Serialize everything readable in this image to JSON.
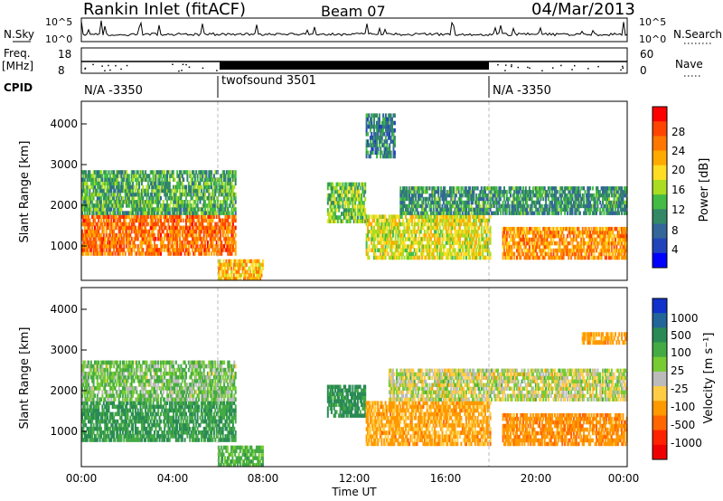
{
  "header": {
    "station": "Rankin Inlet (fitACF)",
    "beam": "Beam 07",
    "date": "04/Mar/2013"
  },
  "noise_panel": {
    "left_label": "N.Sky",
    "right_label": "N.Search",
    "left_ticks": [
      "10^5",
      "10^0"
    ],
    "right_ticks": [
      "10^5",
      "10^0"
    ]
  },
  "freq_panel": {
    "left_label_1": "Freq.",
    "left_label_2": "[MHz]",
    "right_label": "Nave",
    "left_ticks": [
      "18",
      "8"
    ],
    "right_ticks": [
      "60",
      "0"
    ]
  },
  "cpid_panel": {
    "label": "CPID",
    "segments": [
      {
        "text": "N/A -3350",
        "start_hour": 0,
        "end_hour": 6
      },
      {
        "text": "twofsound 3501",
        "start_hour": 6,
        "end_hour": 18
      },
      {
        "text": "N/A -3350",
        "start_hour": 18,
        "end_hour": 24
      }
    ]
  },
  "axes": {
    "x_label": "Time UT",
    "x_ticks": [
      "00:00",
      "04:00",
      "08:00",
      "12:00",
      "16:00",
      "20:00",
      "00:00"
    ],
    "y_label": "Slant Range [km]",
    "y_ticks": [
      "1000",
      "2000",
      "3000",
      "4000"
    ]
  },
  "colorbars": {
    "power": {
      "label": "Power [dB]",
      "ticks": [
        "28",
        "24",
        "20",
        "16",
        "12",
        "8",
        "4"
      ],
      "colors": [
        "#ff0000",
        "#ff4400",
        "#ff7700",
        "#ffaa00",
        "#ffdd22",
        "#aadd22",
        "#44bb44",
        "#338866",
        "#336699",
        "#2244bb",
        "#0000ff"
      ]
    },
    "velocity": {
      "label": "Velocity [m s⁻¹]",
      "ticks": [
        "1000",
        "500",
        "100",
        "25",
        "-25",
        "-100",
        "-500",
        "-1000"
      ],
      "colors": [
        "#1133cc",
        "#226699",
        "#2a8a55",
        "#44aa44",
        "#77cc33",
        "#bbbbbb",
        "#ffcc44",
        "#ff9900",
        "#ff6600",
        "#ff2200",
        "#ee0000"
      ]
    }
  },
  "chart_data": [
    {
      "type": "heatmap",
      "title": "Power [dB]",
      "xlabel": "Time UT",
      "ylabel": "Slant Range [km]",
      "xlim": [
        0,
        24
      ],
      "ylim": [
        180,
        4600
      ],
      "x_unit": "hours UT",
      "blobs": [
        {
          "t0": 0.0,
          "t1": 6.8,
          "r0": 800,
          "r1": 1800,
          "value": 26
        },
        {
          "t0": 0.0,
          "t1": 6.8,
          "r0": 1800,
          "r1": 2900,
          "value": 12
        },
        {
          "t0": 6.0,
          "t1": 8.0,
          "r0": 180,
          "r1": 700,
          "value": 22
        },
        {
          "t0": 10.8,
          "t1": 12.5,
          "r0": 1600,
          "r1": 2600,
          "value": 14
        },
        {
          "t0": 12.5,
          "t1": 18.0,
          "r0": 700,
          "r1": 1800,
          "value": 18
        },
        {
          "t0": 14.0,
          "t1": 24.0,
          "r0": 1800,
          "r1": 2500,
          "value": 10
        },
        {
          "t0": 18.5,
          "t1": 24.0,
          "r0": 700,
          "r1": 1500,
          "value": 24
        },
        {
          "t0": 12.5,
          "t1": 13.8,
          "r0": 3200,
          "r1": 4300,
          "value": 8
        }
      ]
    },
    {
      "type": "heatmap",
      "title": "Velocity [m s⁻¹]",
      "xlabel": "Time UT",
      "ylabel": "Slant Range [km]",
      "xlim": [
        0,
        24
      ],
      "ylim": [
        180,
        4600
      ],
      "x_unit": "hours UT",
      "blobs": [
        {
          "t0": 0.0,
          "t1": 6.8,
          "r0": 800,
          "r1": 1800,
          "value": 250
        },
        {
          "t0": 0.0,
          "t1": 6.8,
          "r0": 1800,
          "r1": 2800,
          "value": 80
        },
        {
          "t0": 6.0,
          "t1": 8.0,
          "r0": 180,
          "r1": 700,
          "value": 150
        },
        {
          "t0": 10.8,
          "t1": 12.5,
          "r0": 1400,
          "r1": 2200,
          "value": 300
        },
        {
          "t0": 12.5,
          "t1": 18.0,
          "r0": 700,
          "r1": 1800,
          "value": -150
        },
        {
          "t0": 13.5,
          "t1": 24.0,
          "r0": 1800,
          "r1": 2600,
          "value": 0
        },
        {
          "t0": 18.5,
          "t1": 24.0,
          "r0": 700,
          "r1": 1500,
          "value": -200
        },
        {
          "t0": 22.0,
          "t1": 24.0,
          "r0": 3200,
          "r1": 3500,
          "value": -150
        }
      ]
    }
  ]
}
